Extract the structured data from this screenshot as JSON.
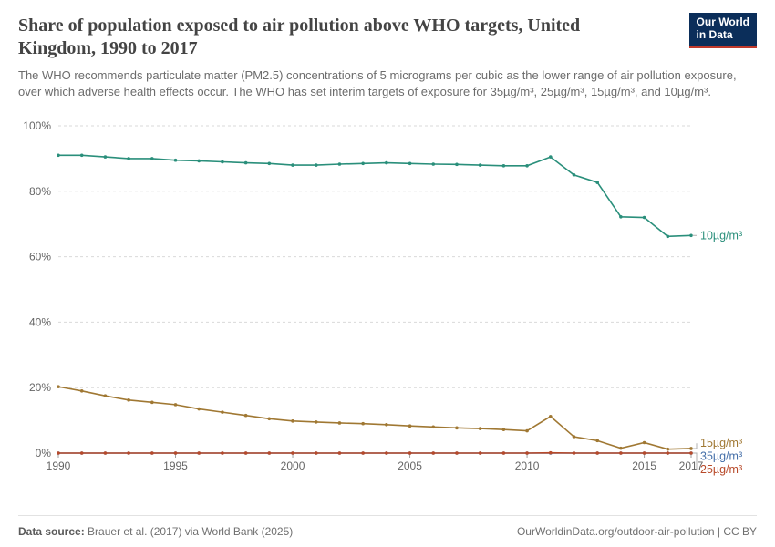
{
  "header": {
    "title": "Share of population exposed to air pollution above WHO targets, United Kingdom, 1990 to 2017",
    "subtitle": "The WHO recommends particulate matter (PM2.5) concentrations of 5 micrograms per cubic as the lower range of air pollution exposure, over which adverse health effects occur. The WHO has set interim targets of exposure for 35µg/m³, 25µg/m³, 15µg/m³, and 10µg/m³.",
    "logo_line1": "Our World",
    "logo_line2": "in Data"
  },
  "footer": {
    "source_label": "Data source:",
    "source_text": "Brauer et al. (2017) via World Bank (2025)",
    "link_text": "OurWorldinData.org/outdoor-air-pollution",
    "license": "CC BY"
  },
  "chart": {
    "type": "line",
    "background_color": "#ffffff",
    "grid_color": "#d9d9d9",
    "baseline_color": "#9e9e9e",
    "axis_text_color": "#666666",
    "label_fontsize": 12,
    "series_label_fontsize": 12.5,
    "line_width": 1.6,
    "marker_radius": 1.8,
    "x": {
      "min": 1990,
      "max": 2017,
      "ticks": [
        1990,
        1995,
        2000,
        2005,
        2010,
        2015,
        2017
      ]
    },
    "y": {
      "min": 0,
      "max": 100,
      "ticks": [
        0,
        20,
        40,
        60,
        80,
        100
      ],
      "tick_suffix": "%"
    },
    "years": [
      1990,
      1991,
      1992,
      1993,
      1994,
      1995,
      1996,
      1997,
      1998,
      1999,
      2000,
      2001,
      2002,
      2003,
      2004,
      2005,
      2006,
      2007,
      2008,
      2009,
      2010,
      2011,
      2012,
      2013,
      2014,
      2015,
      2016,
      2017
    ],
    "series": [
      {
        "name": "10µg/m³",
        "color": "#2a8f7b",
        "values": [
          91,
          91,
          90.5,
          90,
          90,
          89.5,
          89.3,
          89,
          88.7,
          88.5,
          88,
          88,
          88.3,
          88.5,
          88.7,
          88.5,
          88.3,
          88.2,
          88,
          87.8,
          87.8,
          90.5,
          85,
          82.7,
          72.2,
          72,
          66.2,
          66.5
        ],
        "label_y": 66.5
      },
      {
        "name": "15µg/m³",
        "color": "#a07833",
        "values": [
          20.3,
          19,
          17.5,
          16.2,
          15.5,
          14.8,
          13.5,
          12.5,
          11.5,
          10.5,
          9.8,
          9.5,
          9.2,
          9,
          8.7,
          8.3,
          8,
          7.7,
          7.5,
          7.2,
          6.8,
          11.2,
          5,
          3.8,
          1.5,
          3.2,
          1.2,
          1.4
        ],
        "label_y": 3
      },
      {
        "name": "35µg/m³",
        "color": "#436ea8",
        "values": [
          0,
          0,
          0,
          0,
          0,
          0,
          0,
          0,
          0,
          0,
          0,
          0,
          0,
          0,
          0,
          0,
          0,
          0,
          0,
          0,
          0,
          0,
          0,
          0,
          0,
          0,
          0,
          0
        ],
        "label_y": -1
      },
      {
        "name": "25µg/m³",
        "color": "#b84a2a",
        "values": [
          0,
          0,
          0,
          0,
          0,
          0,
          0,
          0,
          0,
          0,
          0,
          0,
          0,
          0,
          0,
          0,
          0,
          0,
          0,
          0,
          0,
          0.1,
          0,
          0,
          0,
          0,
          0,
          0
        ],
        "label_y": -5
      }
    ]
  }
}
